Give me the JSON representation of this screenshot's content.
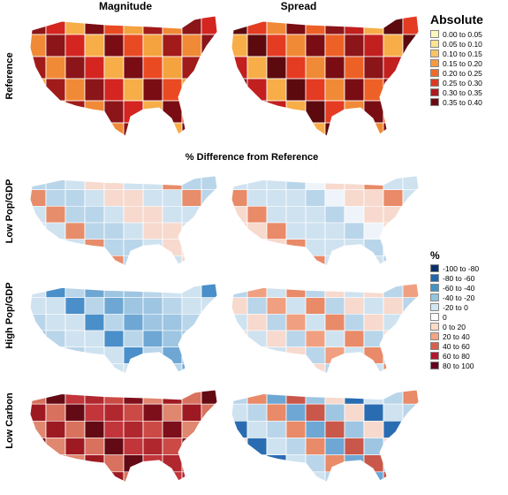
{
  "columns": {
    "left": "Magnitude",
    "right": "Spread"
  },
  "rows": [
    {
      "label": "Reference",
      "left": {
        "palette": [
          "#8b1518",
          "#7a0d13",
          "#a01b1a",
          "#d42520",
          "#ea4a22",
          "#f08a36",
          "#f7ad48",
          "#f4a33f"
        ]
      },
      "right": {
        "palette": [
          "#5c0a0e",
          "#7a0d13",
          "#c21f1f",
          "#e43b23",
          "#ee6126",
          "#f7ad48",
          "#f08a36",
          "#8b1518"
        ]
      }
    },
    {
      "label": "Low Pop/GDP",
      "left": {
        "palette": [
          "#cfe2f0",
          "#b9d5ea",
          "#f7d9cd",
          "#cfe2f0",
          "#b9d5ea",
          "#f7d9cd",
          "#e78d6c",
          "#cfe2f0"
        ]
      },
      "right": {
        "palette": [
          "#f7d9cd",
          "#cfe2f0",
          "#b9d5ea",
          "#f7d9cd",
          "#cfe2f0",
          "#eef4f9",
          "#e98a68",
          "#cfe2f0"
        ]
      }
    },
    {
      "label": "High Pop/GDP",
      "left": {
        "palette": [
          "#b9d5ea",
          "#9ec5e2",
          "#cfe2f0",
          "#6ea7d4",
          "#b9d5ea",
          "#4a8fc9",
          "#9ec5e2",
          "#cfe2f0"
        ]
      },
      "right": {
        "palette": [
          "#cfe2f0",
          "#f7d9cd",
          "#b9d5ea",
          "#e98a68",
          "#cfe2f0",
          "#f0a080",
          "#b9d5ea",
          "#f7d9cd"
        ]
      }
    },
    {
      "label": "Low Carbon",
      "left": {
        "palette": [
          "#9e1a22",
          "#c2353a",
          "#7d0f1a",
          "#d8715e",
          "#b0282e",
          "#e0876f",
          "#640a14",
          "#cc4a45"
        ]
      },
      "right": {
        "palette": [
          "#cfe2f0",
          "#6ea7d4",
          "#f7d9cd",
          "#b9d5ea",
          "#c9574a",
          "#2a6cb2",
          "#e98a68",
          "#9ec5e2"
        ]
      }
    }
  ],
  "mid_title": "% Difference from Reference",
  "legend_absolute": {
    "title": "Absolute",
    "items": [
      {
        "label": "0.00 to 0.05",
        "color": "#fff7bc"
      },
      {
        "label": "0.05 to 0.10",
        "color": "#fee391"
      },
      {
        "label": "0.10 to 0.15",
        "color": "#f9c466"
      },
      {
        "label": "0.15 to 0.20",
        "color": "#f59c3d"
      },
      {
        "label": "0.20 to 0.25",
        "color": "#ef6a28"
      },
      {
        "label": "0.25 to 0.30",
        "color": "#dc3a22"
      },
      {
        "label": "0.30 to 0.35",
        "color": "#b01a1e"
      },
      {
        "label": "0.35 to 0.40",
        "color": "#6a0a10"
      }
    ]
  },
  "legend_percent": {
    "title": "%",
    "items": [
      {
        "label": "-100 to -80",
        "color": "#08306b"
      },
      {
        "label": "-80 to -60",
        "color": "#2166ac"
      },
      {
        "label": "-60 to -40",
        "color": "#4393c3"
      },
      {
        "label": "-40 to -20",
        "color": "#92c5de"
      },
      {
        "label": "-20 to 0",
        "color": "#d1e5f0"
      },
      {
        "label": "0",
        "color": "#ffffff"
      },
      {
        "label": "0 to 20",
        "color": "#fddbc7"
      },
      {
        "label": "20 to 40",
        "color": "#f4a582"
      },
      {
        "label": "40 to 60",
        "color": "#d6604d"
      },
      {
        "label": "60 to 80",
        "color": "#b2182b"
      },
      {
        "label": "80 to 100",
        "color": "#67001f"
      }
    ]
  }
}
